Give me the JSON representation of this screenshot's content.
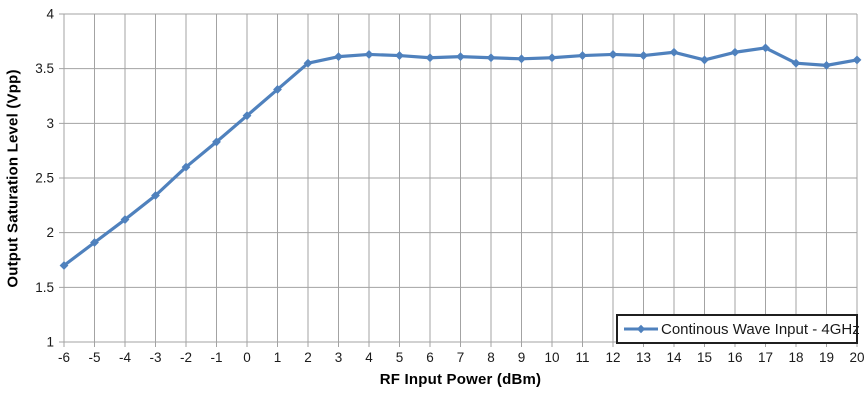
{
  "chart_data": {
    "type": "line",
    "title": "",
    "xlabel": "RF Input Power (dBm)",
    "ylabel": "Output Saturation Level (Vpp)",
    "x": [
      -6,
      -5,
      -4,
      -3,
      -2,
      -1,
      0,
      1,
      2,
      3,
      4,
      5,
      6,
      7,
      8,
      9,
      10,
      11,
      12,
      13,
      14,
      15,
      16,
      17,
      18,
      19,
      20
    ],
    "series": [
      {
        "name": "Continous Wave Input - 4GHz",
        "values": [
          1.7,
          1.91,
          2.12,
          2.34,
          2.6,
          2.83,
          3.07,
          3.31,
          3.55,
          3.61,
          3.63,
          3.62,
          3.6,
          3.61,
          3.6,
          3.59,
          3.6,
          3.62,
          3.63,
          3.62,
          3.65,
          3.58,
          3.65,
          3.69,
          3.55,
          3.53,
          3.58
        ]
      }
    ],
    "xlim": [
      -6,
      20
    ],
    "ylim": [
      1,
      4
    ],
    "x_ticks": [
      -6,
      -5,
      -4,
      -3,
      -2,
      -1,
      0,
      1,
      2,
      3,
      4,
      5,
      6,
      7,
      8,
      9,
      10,
      11,
      12,
      13,
      14,
      15,
      16,
      17,
      18,
      19,
      20
    ],
    "y_ticks": [
      1,
      1.5,
      2,
      2.5,
      3,
      3.5,
      4
    ],
    "grid": true,
    "marker": "diamond",
    "legend_position": "inside-bottom-right",
    "colors": {
      "series": "#4F81BD",
      "gridline": "#A3A3A3",
      "tick_label": "#1A1A1A",
      "axis_title": "#000000",
      "legend_border": "#1F1F1F",
      "background": "#FFFFFF"
    }
  }
}
